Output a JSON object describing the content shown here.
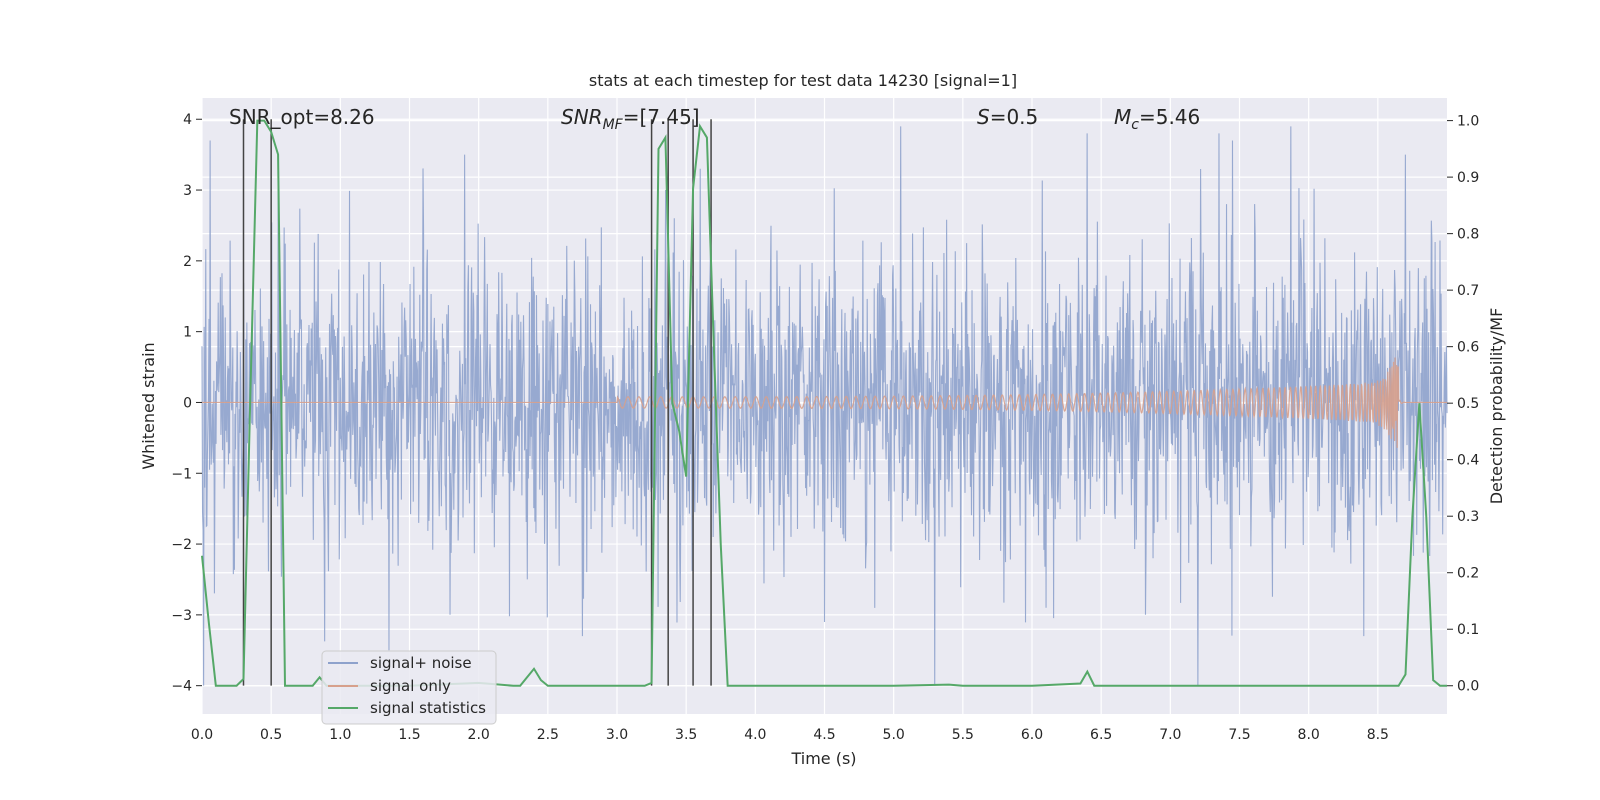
{
  "chart_data": {
    "type": "line",
    "title": "stats at each timestep for test data 14230 [signal=1]",
    "xlabel": "Time (s)",
    "ylabel": "Whitened strain",
    "ylabel_right": "Detection probability/MF",
    "xlim": [
      0.0,
      9.0
    ],
    "ylim": [
      -4.4,
      4.3
    ],
    "ylim_right": [
      -0.05,
      1.04
    ],
    "xticks": [
      "0.0",
      "0.5",
      "1.0",
      "1.5",
      "2.0",
      "2.5",
      "3.0",
      "3.5",
      "4.0",
      "4.5",
      "5.0",
      "5.5",
      "6.0",
      "6.5",
      "7.0",
      "7.5",
      "8.0",
      "8.5"
    ],
    "yticks": [
      "4",
      "3",
      "2",
      "1",
      "0",
      "−1",
      "−2",
      "−3",
      "−4"
    ],
    "yticks_right": [
      "1.0",
      "0.9",
      "0.8",
      "0.7",
      "0.6",
      "0.5",
      "0.4",
      "0.3",
      "0.2",
      "0.1",
      "0.0"
    ],
    "annotations": {
      "snr_opt": "SNR_opt=8.26",
      "snr_mf_main": "SNR",
      "snr_mf_sub": "MF",
      "snr_mf_rest": "=[7.45]",
      "s_main": "S",
      "s_rest": "=0.5",
      "mc_main": "M",
      "mc_sub": "c",
      "mc_rest": "=5.46"
    },
    "legend": {
      "position": "lower-left",
      "entries": [
        "signal+ noise",
        "signal only",
        "signal statistics"
      ]
    },
    "series": [
      {
        "name": "signal+ noise",
        "color": "#8ea2cc",
        "description": "dense whitened strain noise, approx amplitude sd 1.05, peaks up to ~3.9 and down to ~-4.0",
        "sample_rate": 256,
        "spikes": [
          {
            "x": 0.06,
            "y": 3.7
          },
          {
            "x": 0.55,
            "y": 3.4
          },
          {
            "x": 1.9,
            "y": 3.5
          },
          {
            "x": 3.35,
            "y": 3.0
          },
          {
            "x": 3.6,
            "y": 3.3
          },
          {
            "x": 5.05,
            "y": 3.9
          },
          {
            "x": 6.4,
            "y": 3.8
          },
          {
            "x": 7.35,
            "y": 3.8
          },
          {
            "x": 7.45,
            "y": 3.7
          },
          {
            "x": 7.87,
            "y": 3.9
          },
          {
            "x": 8.7,
            "y": 3.5
          },
          {
            "x": 1.35,
            "y": -3.5
          },
          {
            "x": 2.75,
            "y": -3.3
          },
          {
            "x": 4.5,
            "y": -3.1
          },
          {
            "x": 7.2,
            "y": -4.0
          },
          {
            "x": 8.4,
            "y": -3.3
          },
          {
            "x": 6.1,
            "y": -2.9
          }
        ]
      },
      {
        "name": "signal only",
        "color": "#d7a08c",
        "description": "chirp signal growing toward merger near t=8.65",
        "start": 3.0,
        "merger": 8.65,
        "peak_amplitude": 1.0,
        "trough_amplitude": -0.7
      },
      {
        "name": "signal statistics",
        "color": "#55a868",
        "x": [
          0.0,
          0.05,
          0.1,
          0.15,
          0.2,
          0.25,
          0.3,
          0.35,
          0.4,
          0.45,
          0.5,
          0.55,
          0.6,
          0.65,
          0.7,
          0.75,
          0.8,
          0.85,
          0.9,
          0.95,
          1.0,
          1.5,
          2.0,
          2.25,
          2.3,
          2.35,
          2.4,
          2.45,
          2.5,
          2.6,
          3.0,
          3.2,
          3.25,
          3.3,
          3.35,
          3.4,
          3.45,
          3.5,
          3.55,
          3.6,
          3.65,
          3.7,
          3.75,
          3.8,
          3.85,
          4.0,
          5.0,
          5.4,
          5.5,
          6.0,
          6.35,
          6.4,
          6.45,
          6.5,
          7.0,
          8.0,
          8.5,
          8.65,
          8.7,
          8.75,
          8.8,
          8.85,
          8.9,
          8.95,
          9.0
        ],
        "values": [
          0.23,
          0.11,
          0.0,
          0.0,
          0.0,
          0.0,
          0.012,
          0.52,
          1.0,
          1.0,
          0.98,
          0.94,
          0.0,
          0.0,
          0.0,
          0.0,
          0.0,
          0.015,
          0.0,
          0.0,
          0.0,
          0.0,
          0.005,
          0.0,
          0.0,
          0.015,
          0.03,
          0.01,
          0.0,
          0.0,
          0.0,
          0.0,
          0.005,
          0.95,
          0.97,
          0.5,
          0.45,
          0.37,
          0.88,
          0.99,
          0.97,
          0.6,
          0.25,
          0.0,
          0.0,
          0.0,
          0.0,
          0.002,
          0.0,
          0.0,
          0.004,
          0.025,
          0.0,
          0.0,
          0.0,
          0.0,
          0.0,
          0.0,
          0.02,
          0.3,
          0.5,
          0.3,
          0.01,
          0.0,
          0.0
        ]
      }
    ],
    "vertical_lines": [
      0.3,
      0.5,
      3.25,
      3.37,
      3.55,
      3.68
    ],
    "vertical_lines_y_range": [
      -4.0,
      4.0
    ]
  }
}
